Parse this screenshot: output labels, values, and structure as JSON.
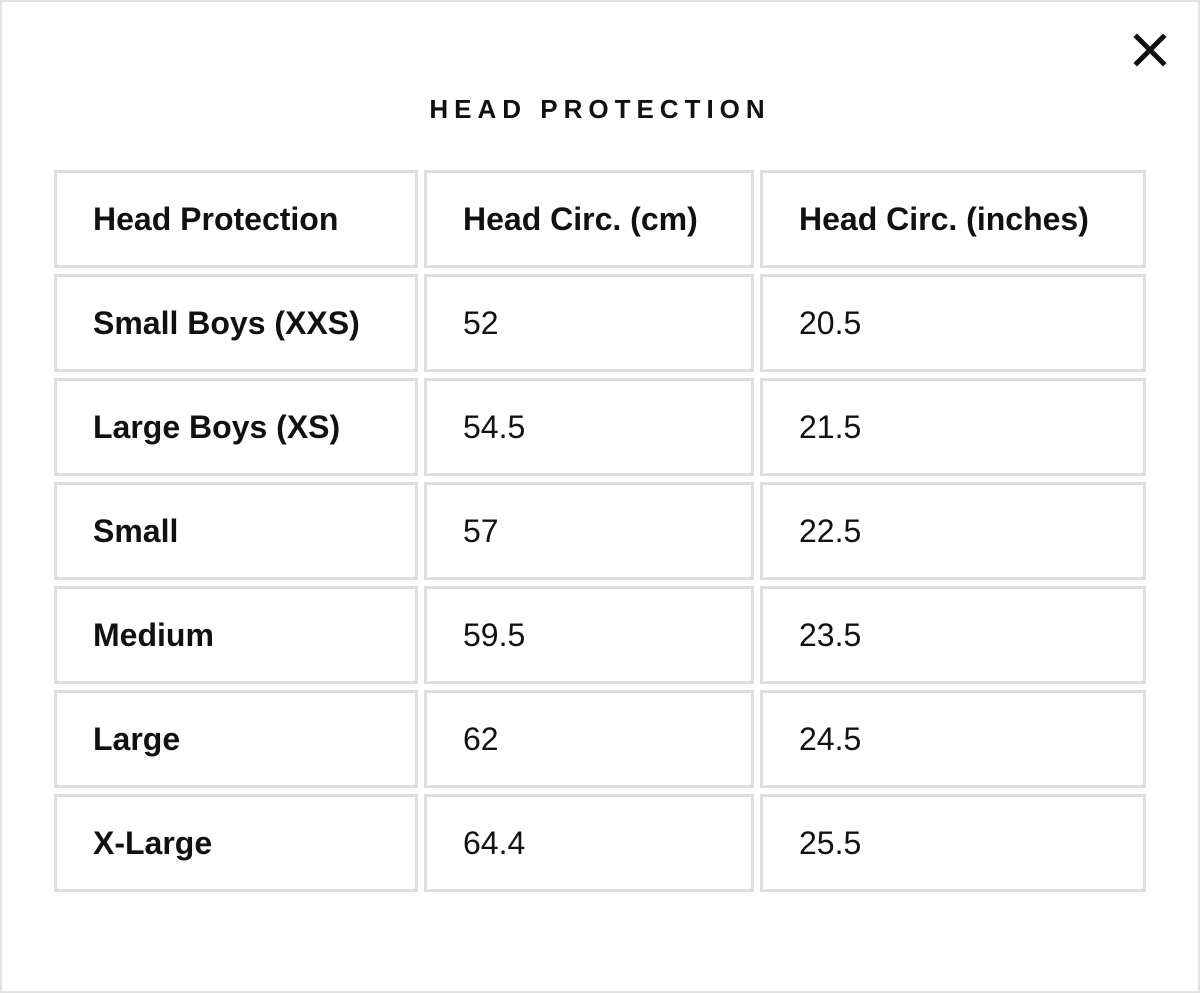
{
  "modal": {
    "title": "HEAD PROTECTION",
    "close_icon": "close-icon"
  },
  "table": {
    "headers": [
      "Head Protection",
      "Head Circ. (cm)",
      "Head Circ. (inches)"
    ],
    "rows": [
      {
        "size": "Small Boys (XXS)",
        "cm": "52",
        "inches": "20.5"
      },
      {
        "size": "Large Boys (XS)",
        "cm": "54.5",
        "inches": "21.5"
      },
      {
        "size": "Small",
        "cm": "57",
        "inches": "22.5"
      },
      {
        "size": "Medium",
        "cm": "59.5",
        "inches": "23.5"
      },
      {
        "size": "Large",
        "cm": "62",
        "inches": "24.5"
      },
      {
        "size": "X-Large",
        "cm": "64.4",
        "inches": "25.5"
      }
    ]
  },
  "colors": {
    "text": "#111111",
    "border": "#dedede",
    "background": "#ffffff"
  }
}
